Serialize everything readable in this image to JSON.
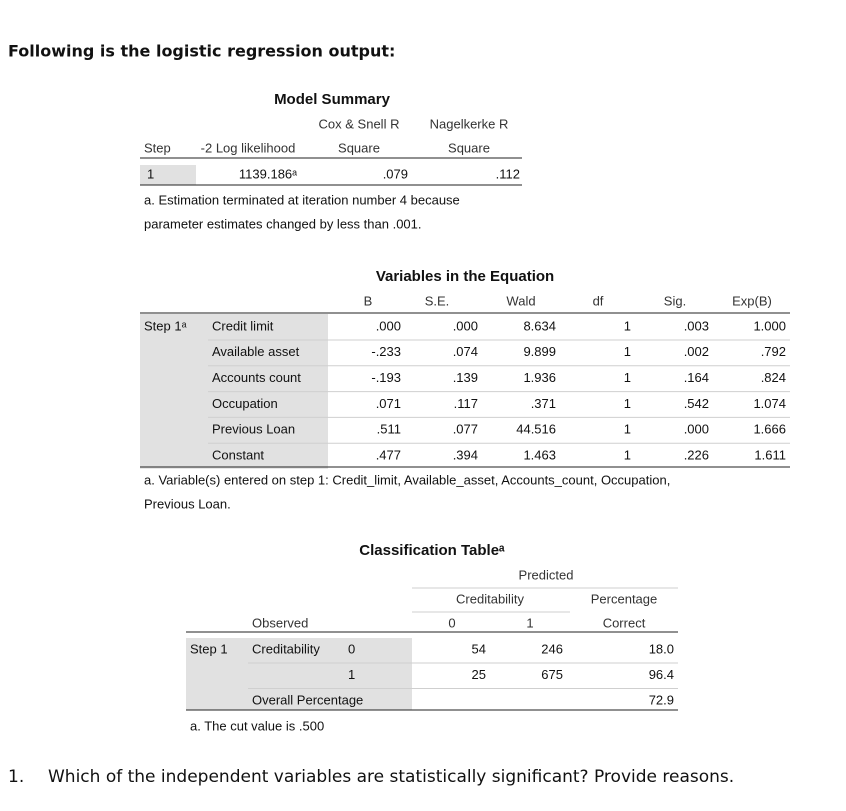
{
  "heading": "Following is the logistic regression output:",
  "model_summary": {
    "title": "Model Summary",
    "col_step": "Step",
    "col_loglik": "-2 Log likelihood",
    "col_cox": [
      "Cox & Snell R",
      "Square"
    ],
    "col_nagel": [
      "Nagelkerke R",
      "Square"
    ],
    "rows": [
      [
        "1",
        "1139.186ᵃ",
        ".079",
        ".112"
      ]
    ],
    "footnote": [
      "a. Estimation terminated at iteration number 4 because",
      "parameter estimates changed by less than .001."
    ]
  },
  "variables": {
    "title": "Variables in the Equation",
    "columns": [
      "B",
      "S.E.",
      "Wald",
      "df",
      "Sig.",
      "Exp(B)"
    ],
    "step": "Step 1ᵃ",
    "rows": [
      {
        "label": "Credit limit",
        "values": [
          ".000",
          ".000",
          "8.634",
          "1",
          ".003",
          "1.000"
        ]
      },
      {
        "label": "Available asset",
        "values": [
          "-.233",
          ".074",
          "9.899",
          "1",
          ".002",
          ".792"
        ]
      },
      {
        "label": "Accounts count",
        "values": [
          "-.193",
          ".139",
          "1.936",
          "1",
          ".164",
          ".824"
        ]
      },
      {
        "label": "Occupation",
        "values": [
          ".071",
          ".117",
          ".371",
          "1",
          ".542",
          "1.074"
        ]
      },
      {
        "label": "Previous Loan",
        "values": [
          ".511",
          ".077",
          "44.516",
          "1",
          ".000",
          "1.666"
        ]
      },
      {
        "label": "Constant",
        "values": [
          ".477",
          ".394",
          "1.463",
          "1",
          ".226",
          "1.611"
        ]
      }
    ],
    "footnote": [
      "a. Variable(s) entered on step 1: Credit_limit, Available_asset, Accounts_count, Occupation,",
      "Previous Loan."
    ]
  },
  "classification": {
    "title": "Classification Tableᵃ",
    "predicted": "Predicted",
    "pred_var": "Creditability",
    "pred_categories": [
      "0",
      "1"
    ],
    "percentage": [
      "Percentage",
      "Correct"
    ],
    "observed": "Observed",
    "step": "Step 1",
    "obs_var": "Creditability",
    "rows": [
      {
        "label": "0",
        "values": [
          "54",
          "246",
          "18.0"
        ]
      },
      {
        "label": "1",
        "values": [
          "25",
          "675",
          "96.4"
        ]
      },
      {
        "label": "Overall Percentage",
        "values": [
          "72.9"
        ]
      }
    ],
    "footnote": "a. The cut value is .500"
  },
  "question": {
    "number": "1.",
    "text": "Which of the independent variables are statistically significant? Provide reasons."
  }
}
